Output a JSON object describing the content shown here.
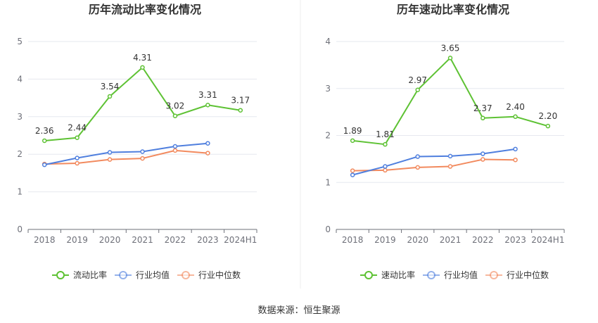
{
  "colors": {
    "primary": "#5ec234",
    "average": "#4f7fde",
    "median": "#f28a5e",
    "grid": "#e6e8ef",
    "axis": "#6e7079"
  },
  "chart_data": [
    {
      "type": "line",
      "title": "历年流动比率变化情况",
      "categories": [
        "2018",
        "2019",
        "2020",
        "2021",
        "2022",
        "2023",
        "2024H1"
      ],
      "ylim": [
        0,
        5
      ],
      "yticks": [
        "0",
        "1",
        "2",
        "3",
        "4",
        "5"
      ],
      "grid": true,
      "legend_position": "bottom",
      "series": [
        {
          "name": "流动比率",
          "values": [
            2.36,
            2.44,
            3.54,
            4.31,
            3.02,
            3.31,
            3.17
          ],
          "labels": [
            "2.36",
            "2.44",
            "3.54",
            "4.31",
            "3.02",
            "3.31",
            "3.17"
          ]
        },
        {
          "name": "行业均值",
          "values": [
            1.72,
            1.9,
            2.05,
            2.07,
            2.21,
            2.29,
            null
          ]
        },
        {
          "name": "行业中位数",
          "values": [
            1.74,
            1.76,
            1.86,
            1.89,
            2.1,
            2.03,
            null
          ]
        }
      ]
    },
    {
      "type": "line",
      "title": "历年速动比率变化情况",
      "categories": [
        "2018",
        "2019",
        "2020",
        "2021",
        "2022",
        "2023",
        "2024H1"
      ],
      "ylim": [
        0,
        4
      ],
      "yticks": [
        "0",
        "1",
        "2",
        "3",
        "4"
      ],
      "grid": true,
      "legend_position": "bottom",
      "series": [
        {
          "name": "速动比率",
          "values": [
            1.89,
            1.81,
            2.97,
            3.65,
            2.37,
            2.4,
            2.2
          ],
          "labels": [
            "1.89",
            "1.81",
            "2.97",
            "3.65",
            "2.37",
            "2.40",
            "2.20"
          ]
        },
        {
          "name": "行业均值",
          "values": [
            1.16,
            1.34,
            1.55,
            1.56,
            1.61,
            1.71,
            null
          ]
        },
        {
          "name": "行业中位数",
          "values": [
            1.25,
            1.26,
            1.32,
            1.34,
            1.49,
            1.48,
            null
          ]
        }
      ]
    }
  ],
  "footer": {
    "source": "数据来源：恒生聚源"
  }
}
